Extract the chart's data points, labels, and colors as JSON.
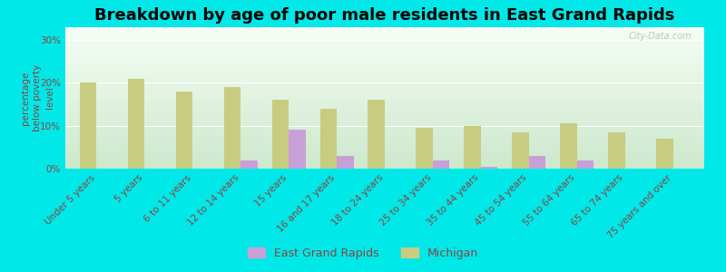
{
  "title": "Breakdown by age of poor male residents in East Grand Rapids",
  "ylabel": "percentage\nbelow poverty\nlevel",
  "categories": [
    "Under 5 years",
    "5 years",
    "6 to 11 years",
    "12 to 14 years",
    "15 years",
    "16 and 17 years",
    "18 to 24 years",
    "25 to 34 years",
    "35 to 44 years",
    "45 to 54 years",
    "55 to 64 years",
    "65 to 74 years",
    "75 years and over"
  ],
  "egr_values": [
    0,
    0,
    0,
    2,
    9,
    3,
    0,
    2,
    0.5,
    3,
    2,
    0,
    0
  ],
  "mi_values": [
    20,
    21,
    18,
    19,
    16,
    14,
    16,
    9.5,
    10,
    8.5,
    10.5,
    8.5,
    7
  ],
  "egr_color": "#c8a0d8",
  "mi_color": "#c8cc80",
  "outer_bg_color": "#00e8e8",
  "plot_bg_top": "#f5fdf5",
  "plot_bg_bottom": "#cce8cc",
  "yticks": [
    0,
    10,
    20,
    30
  ],
  "ytick_labels": [
    "0%",
    "10%",
    "20%",
    "30%"
  ],
  "ylim": [
    0,
    33
  ],
  "legend_egr": "East Grand Rapids",
  "legend_mi": "Michigan",
  "title_fontsize": 13,
  "axis_label_fontsize": 7.5,
  "tick_fontsize": 7.5,
  "bar_width": 0.35,
  "watermark": "City-Data.com",
  "label_color": "#884444"
}
